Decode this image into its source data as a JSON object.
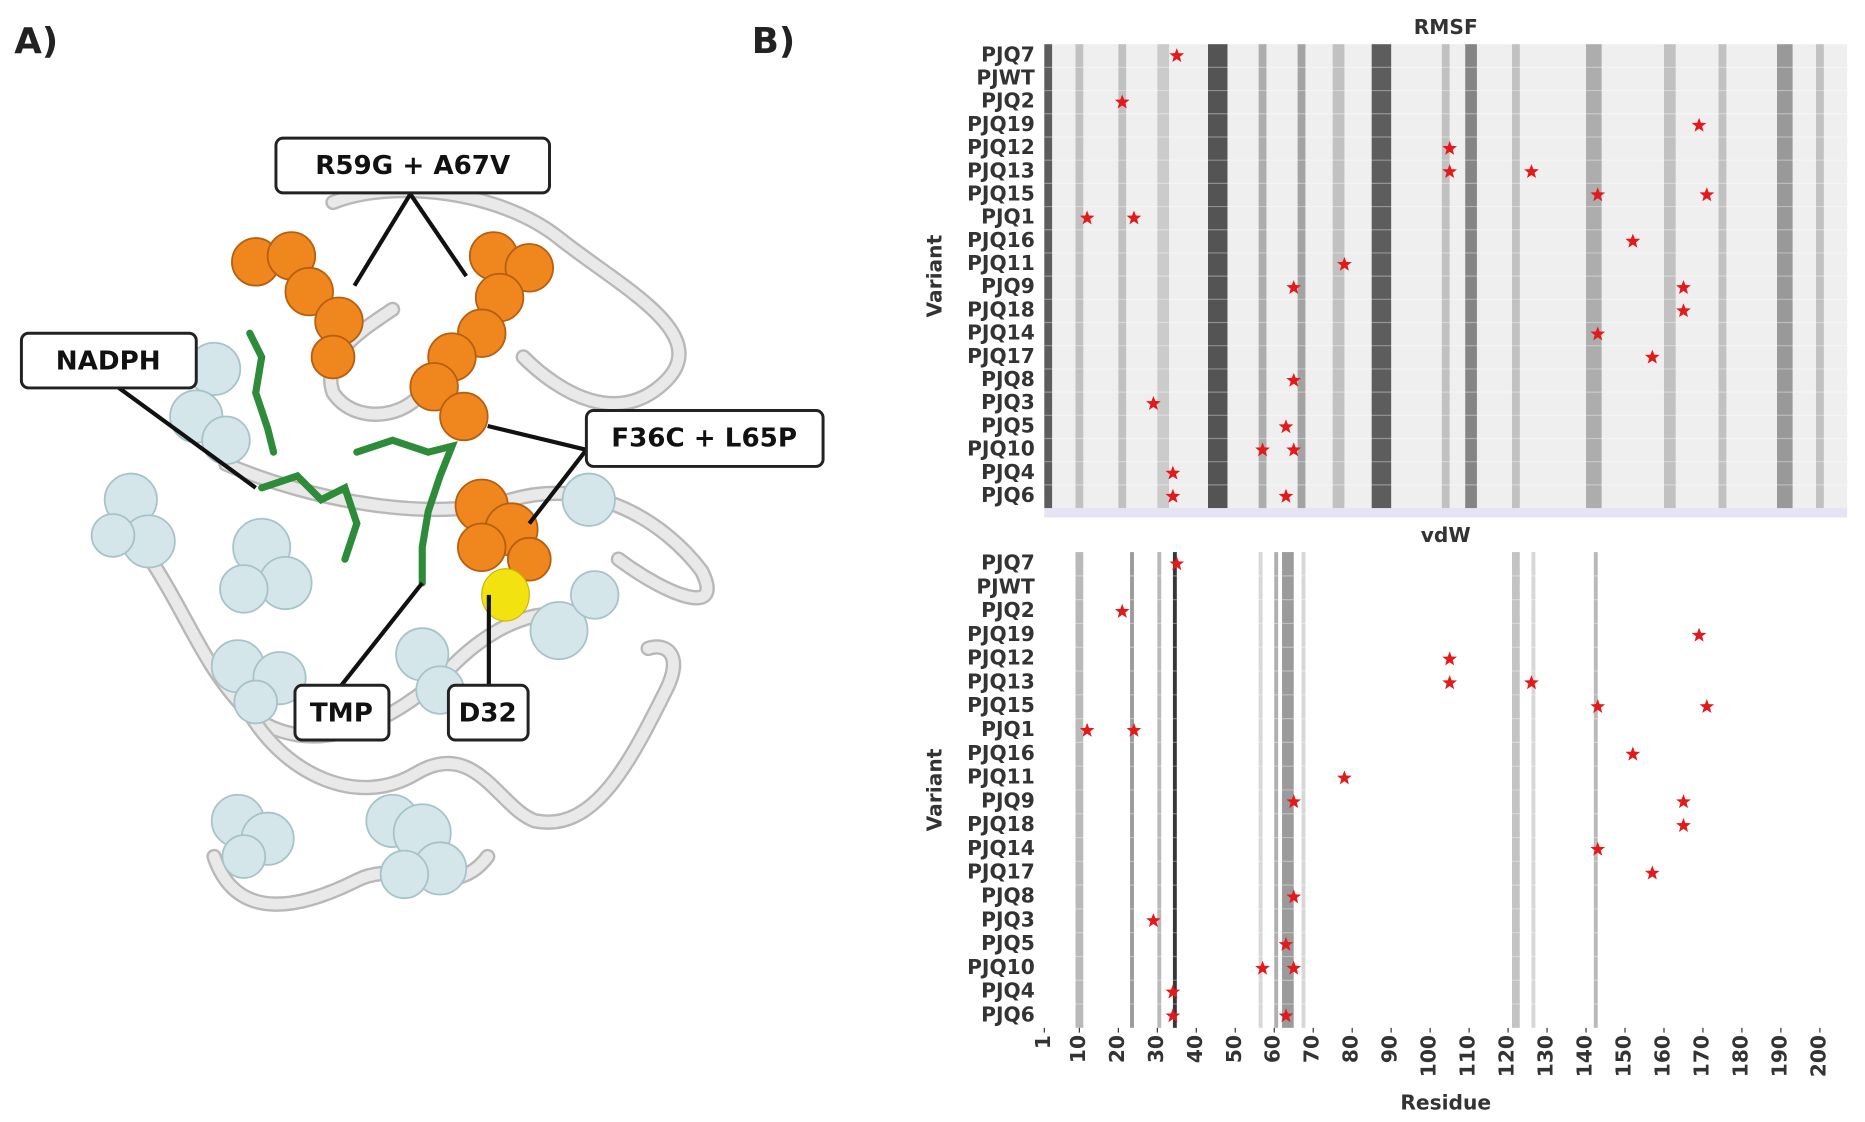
{
  "panel_labels": [
    "A)",
    "B)"
  ],
  "panel_a": {
    "annotations": [
      "R59G + A67V",
      "NADPH",
      "F36C + L65P",
      "TMP",
      "D32"
    ]
  },
  "chart_data": [
    {
      "type": "heatmap",
      "title": "RMSF",
      "y_label": "Variant",
      "categories": [
        "PJQ7",
        "PJWT",
        "PJQ2",
        "PJQ19",
        "PJQ12",
        "PJQ13",
        "PJQ15",
        "PJQ1",
        "PJQ16",
        "PJQ11",
        "PJQ9",
        "PJQ18",
        "PJQ14",
        "PJQ17",
        "PJQ8",
        "PJQ3",
        "PJQ5",
        "PJQ10",
        "PJQ4",
        "PJQ6"
      ],
      "mutations": [
        [
          35
        ],
        [],
        [
          21
        ],
        [
          169
        ],
        [
          105
        ],
        [
          105,
          126
        ],
        [
          143,
          171
        ],
        [
          12,
          24
        ],
        [
          152
        ],
        [
          78
        ],
        [
          65,
          165
        ],
        [
          165
        ],
        [
          143
        ],
        [
          157
        ],
        [
          65
        ],
        [
          29
        ],
        [
          63
        ],
        [
          57,
          65
        ],
        [
          34
        ],
        [
          34,
          63
        ]
      ],
      "marker_color": "#e31a1c",
      "xlim": [
        1,
        207
      ],
      "bands": [
        {
          "start": 1,
          "end": 3,
          "intensity": 0.8
        },
        {
          "start": 9,
          "end": 11,
          "intensity": 0.3
        },
        {
          "start": 20,
          "end": 22,
          "intensity": 0.3
        },
        {
          "start": 30,
          "end": 33,
          "intensity": 0.25
        },
        {
          "start": 43,
          "end": 48,
          "intensity": 0.85
        },
        {
          "start": 56,
          "end": 58,
          "intensity": 0.4
        },
        {
          "start": 66,
          "end": 68,
          "intensity": 0.45
        },
        {
          "start": 75,
          "end": 78,
          "intensity": 0.3
        },
        {
          "start": 85,
          "end": 90,
          "intensity": 0.8
        },
        {
          "start": 103,
          "end": 105,
          "intensity": 0.3
        },
        {
          "start": 109,
          "end": 112,
          "intensity": 0.6
        },
        {
          "start": 121,
          "end": 123,
          "intensity": 0.3
        },
        {
          "start": 140,
          "end": 144,
          "intensity": 0.4
        },
        {
          "start": 160,
          "end": 163,
          "intensity": 0.3
        },
        {
          "start": 174,
          "end": 176,
          "intensity": 0.3
        },
        {
          "start": 189,
          "end": 193,
          "intensity": 0.5
        },
        {
          "start": 199,
          "end": 201,
          "intensity": 0.3
        }
      ]
    },
    {
      "type": "heatmap",
      "title": "vdW",
      "y_label": "Variant",
      "x_label": "Residue",
      "categories": [
        "PJQ7",
        "PJWT",
        "PJQ2",
        "PJQ19",
        "PJQ12",
        "PJQ13",
        "PJQ15",
        "PJQ1",
        "PJQ16",
        "PJQ11",
        "PJQ9",
        "PJQ18",
        "PJQ14",
        "PJQ17",
        "PJQ8",
        "PJQ3",
        "PJQ5",
        "PJQ10",
        "PJQ4",
        "PJQ6"
      ],
      "mutations": [
        [
          35
        ],
        [],
        [
          21
        ],
        [
          169
        ],
        [
          105
        ],
        [
          105,
          126
        ],
        [
          143,
          171
        ],
        [
          12,
          24
        ],
        [
          152
        ],
        [
          78
        ],
        [
          65,
          165
        ],
        [
          165
        ],
        [
          143
        ],
        [
          157
        ],
        [
          65
        ],
        [
          29
        ],
        [
          63
        ],
        [
          57,
          65
        ],
        [
          34
        ],
        [
          34,
          63
        ]
      ],
      "marker_color": "#e31a1c",
      "xlim": [
        1,
        207
      ],
      "xticks": [
        1,
        10,
        20,
        30,
        40,
        50,
        60,
        70,
        80,
        90,
        100,
        110,
        120,
        130,
        140,
        150,
        160,
        170,
        180,
        190,
        200
      ],
      "bands": [
        {
          "start": 9,
          "end": 11,
          "intensity": 0.35
        },
        {
          "start": 23,
          "end": 24,
          "intensity": 0.5
        },
        {
          "start": 30,
          "end": 31,
          "intensity": 0.35
        },
        {
          "start": 34,
          "end": 35,
          "intensity": 1.0
        },
        {
          "start": 56,
          "end": 57,
          "intensity": 0.2
        },
        {
          "start": 60,
          "end": 61,
          "intensity": 0.4
        },
        {
          "start": 62,
          "end": 65,
          "intensity": 0.5
        },
        {
          "start": 67,
          "end": 68,
          "intensity": 0.2
        },
        {
          "start": 121,
          "end": 123,
          "intensity": 0.3
        },
        {
          "start": 126,
          "end": 127,
          "intensity": 0.2
        },
        {
          "start": 142,
          "end": 143,
          "intensity": 0.35
        }
      ]
    }
  ]
}
